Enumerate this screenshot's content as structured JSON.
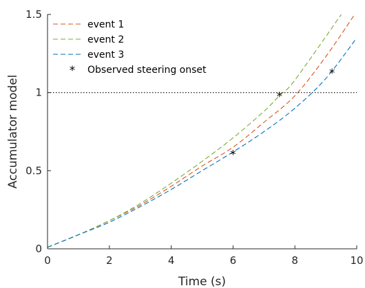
{
  "chart_data": {
    "type": "line",
    "title": "",
    "xlabel": "Time (s)",
    "ylabel": "Accumulator model",
    "xlim": [
      0,
      10
    ],
    "ylim": [
      0,
      1.5
    ],
    "xticks": [
      0,
      2,
      4,
      6,
      8,
      10
    ],
    "xtick_labels": [
      "0",
      "2",
      "4",
      "6",
      "8",
      "10"
    ],
    "yticks": [
      0,
      0.5,
      1,
      1.5
    ],
    "ytick_labels": [
      "0",
      "0.5",
      "1",
      "1.5"
    ],
    "grid": false,
    "legend_position": "top-left",
    "threshold": {
      "y": 1,
      "style": "dotted",
      "color": "#000000"
    },
    "series": [
      {
        "name": "event 1",
        "color": "#d95319",
        "style": "dashed",
        "x": [
          0,
          1,
          2,
          3,
          4,
          5,
          6,
          7,
          8,
          9,
          10
        ],
        "y": [
          0.01,
          0.09,
          0.18,
          0.28,
          0.4,
          0.53,
          0.65,
          0.81,
          0.98,
          1.23,
          1.52
        ]
      },
      {
        "name": "event 2",
        "color": "#77ac30",
        "style": "dashed",
        "x": [
          0,
          1,
          2,
          3,
          4,
          5,
          6,
          7,
          7.5,
          8,
          9.5
        ],
        "y": [
          0.01,
          0.09,
          0.18,
          0.29,
          0.42,
          0.56,
          0.71,
          0.88,
          0.98,
          1.08,
          1.5
        ]
      },
      {
        "name": "event 3",
        "color": "#0072bd",
        "style": "dashed",
        "x": [
          0,
          1,
          2,
          3,
          4,
          5,
          6,
          7,
          8,
          9,
          10
        ],
        "y": [
          0.01,
          0.09,
          0.17,
          0.27,
          0.38,
          0.5,
          0.62,
          0.75,
          0.9,
          1.09,
          1.35
        ]
      },
      {
        "name": "Observed steering onset",
        "color": "#000000",
        "style": "markers",
        "marker": "*",
        "x": [
          6.0,
          7.5,
          9.2
        ],
        "y": [
          0.61,
          0.98,
          1.13
        ]
      }
    ]
  }
}
